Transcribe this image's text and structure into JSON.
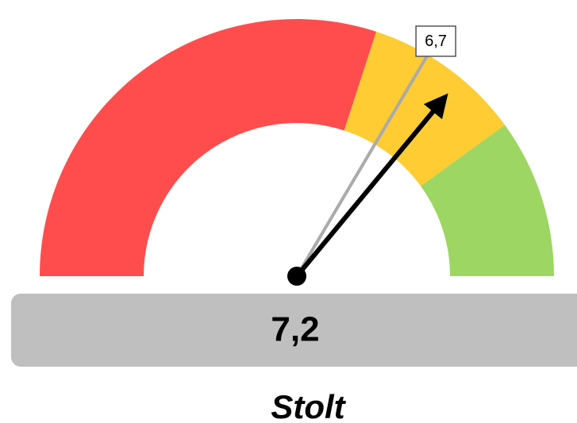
{
  "chart_data": {
    "type": "gauge",
    "ylim": [
      0,
      10
    ],
    "bands": [
      {
        "from": 0,
        "to": 6,
        "color": "#ff4d4d"
      },
      {
        "from": 6,
        "to": 8,
        "color": "#ffcc33"
      },
      {
        "from": 8,
        "to": 10,
        "color": "#9dd662"
      }
    ],
    "value": 7.2,
    "value_label": "7,2",
    "needle_color": "#000000",
    "target": 6.7,
    "target_label": "6,7",
    "target_color": "#aaaaaa",
    "label": "Stolt"
  }
}
